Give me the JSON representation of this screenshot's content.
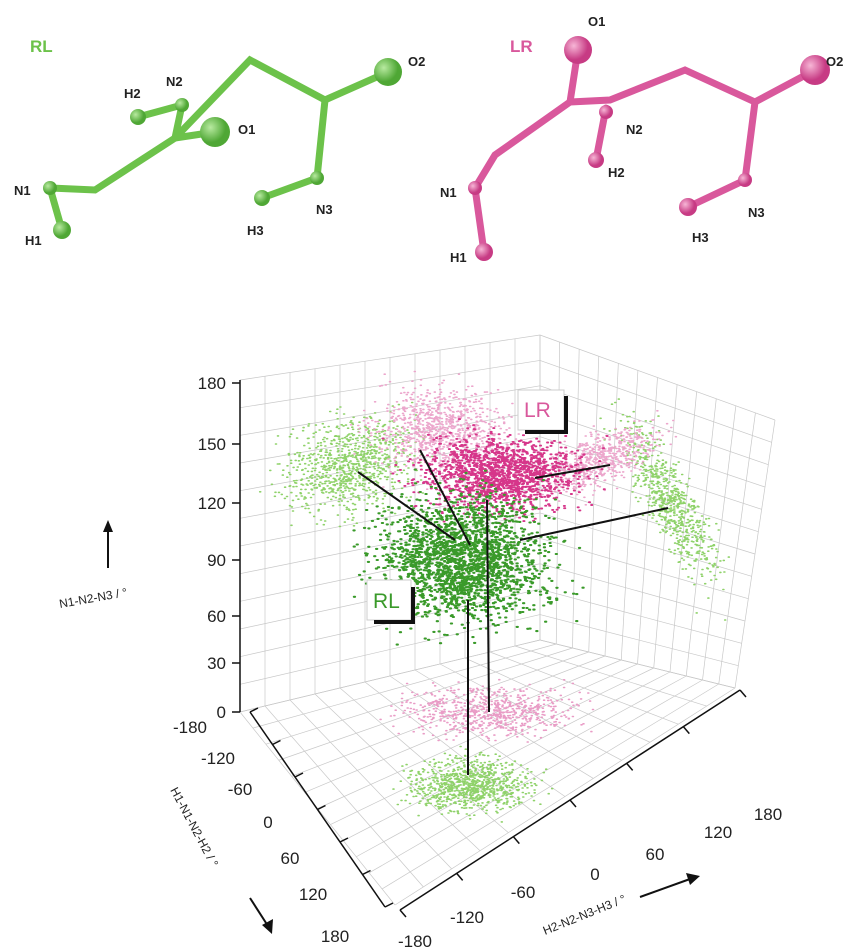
{
  "molecules": {
    "rl": {
      "label": "RL",
      "atoms": [
        "N1",
        "H1",
        "N2",
        "H2",
        "O1",
        "O2",
        "N3",
        "H3"
      ]
    },
    "lr": {
      "label": "LR",
      "atoms": [
        "O1",
        "O2",
        "N2",
        "H2",
        "N1",
        "H1",
        "N3",
        "H3"
      ]
    }
  },
  "plot": {
    "z_axis": {
      "label": "N1-N2-N3 / °",
      "ticks": [
        180,
        150,
        120,
        90,
        60,
        30,
        0
      ]
    },
    "x_axis": {
      "label": "H1-N1-N2-H2 / °",
      "ticks": [
        -180,
        -120,
        -60,
        0,
        60,
        120,
        180
      ]
    },
    "y_axis": {
      "label": "H2-N2-N3-H3 / °",
      "ticks": [
        -180,
        -120,
        -60,
        0,
        60,
        120,
        180
      ]
    },
    "cluster_labels": [
      "RL",
      "LR"
    ]
  }
}
